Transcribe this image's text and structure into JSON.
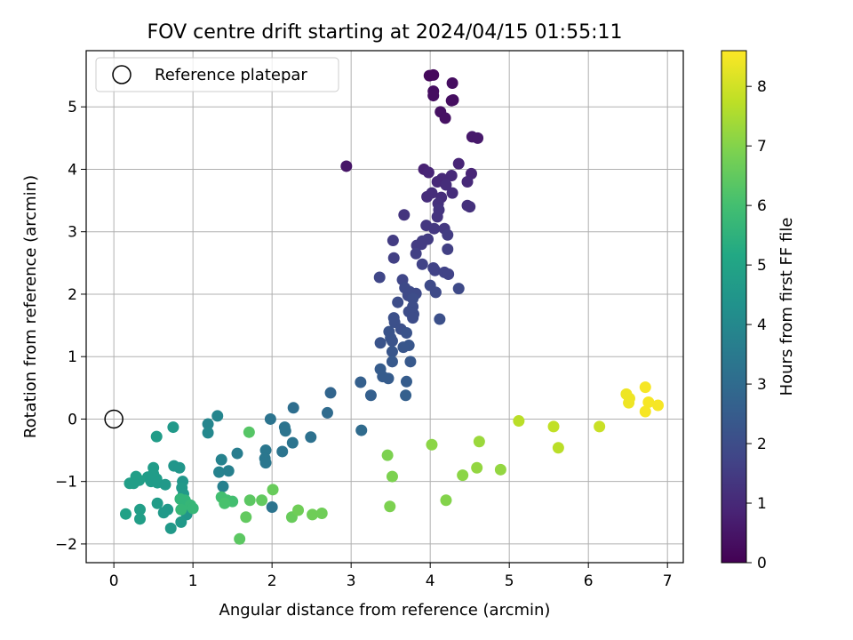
{
  "chart_data": {
    "type": "scatter",
    "title": "FOV centre drift starting at 2024/04/15 01:55:11",
    "xlabel": "Angular distance from reference (arcmin)",
    "ylabel": "Rotation from reference (arcmin)",
    "xlim": [
      -0.35,
      7.2
    ],
    "ylim": [
      -2.3,
      5.9
    ],
    "xticks": [
      0,
      1,
      2,
      3,
      4,
      5,
      6,
      7
    ],
    "yticks": [
      -2,
      -1,
      0,
      1,
      2,
      3,
      4,
      5
    ],
    "grid": true,
    "legend": {
      "placement": "top-left",
      "entries": [
        "Reference platepar"
      ]
    },
    "reference_point": {
      "x": 0,
      "y": 0
    },
    "colorbar": {
      "label": "Hours from first FF file",
      "colormap": "viridis",
      "range": [
        0,
        8.6
      ],
      "ticks": [
        0,
        1,
        2,
        3,
        4,
        5,
        6,
        7,
        8
      ]
    },
    "points": [
      {
        "x": 2.94,
        "y": 4.05,
        "c": 0.5
      },
      {
        "x": 3.99,
        "y": 5.5,
        "c": 0.2
      },
      {
        "x": 4.04,
        "y": 5.51,
        "c": 0.2
      },
      {
        "x": 4.28,
        "y": 5.38,
        "c": 0.3
      },
      {
        "x": 4.04,
        "y": 5.25,
        "c": 0.3
      },
      {
        "x": 4.04,
        "y": 5.18,
        "c": 0.3
      },
      {
        "x": 4.29,
        "y": 5.11,
        "c": 0.3
      },
      {
        "x": 4.27,
        "y": 5.1,
        "c": 0.3
      },
      {
        "x": 4.13,
        "y": 4.92,
        "c": 0.4
      },
      {
        "x": 4.19,
        "y": 4.82,
        "c": 0.4
      },
      {
        "x": 4.53,
        "y": 4.52,
        "c": 0.6
      },
      {
        "x": 4.6,
        "y": 4.5,
        "c": 0.6
      },
      {
        "x": 4.36,
        "y": 4.09,
        "c": 0.9
      },
      {
        "x": 3.92,
        "y": 4.0,
        "c": 0.8
      },
      {
        "x": 3.98,
        "y": 3.95,
        "c": 0.9
      },
      {
        "x": 4.52,
        "y": 3.93,
        "c": 0.9
      },
      {
        "x": 4.27,
        "y": 3.9,
        "c": 1.0
      },
      {
        "x": 4.15,
        "y": 3.85,
        "c": 1.0
      },
      {
        "x": 4.09,
        "y": 3.8,
        "c": 1.0
      },
      {
        "x": 4.47,
        "y": 3.8,
        "c": 1.0
      },
      {
        "x": 4.2,
        "y": 3.75,
        "c": 1.1
      },
      {
        "x": 4.02,
        "y": 3.62,
        "c": 1.1
      },
      {
        "x": 4.28,
        "y": 3.62,
        "c": 1.1
      },
      {
        "x": 3.96,
        "y": 3.56,
        "c": 1.1
      },
      {
        "x": 4.14,
        "y": 3.55,
        "c": 1.1
      },
      {
        "x": 4.1,
        "y": 3.45,
        "c": 1.2
      },
      {
        "x": 4.47,
        "y": 3.42,
        "c": 1.2
      },
      {
        "x": 4.5,
        "y": 3.4,
        "c": 1.2
      },
      {
        "x": 4.11,
        "y": 3.35,
        "c": 1.3
      },
      {
        "x": 3.67,
        "y": 3.27,
        "c": 1.3
      },
      {
        "x": 4.09,
        "y": 3.24,
        "c": 1.3
      },
      {
        "x": 3.95,
        "y": 3.1,
        "c": 1.4
      },
      {
        "x": 4.18,
        "y": 3.05,
        "c": 1.4
      },
      {
        "x": 4.05,
        "y": 3.05,
        "c": 1.4
      },
      {
        "x": 4.22,
        "y": 2.95,
        "c": 1.5
      },
      {
        "x": 3.9,
        "y": 2.85,
        "c": 1.5
      },
      {
        "x": 3.97,
        "y": 2.88,
        "c": 1.5
      },
      {
        "x": 3.53,
        "y": 2.86,
        "c": 1.5
      },
      {
        "x": 3.83,
        "y": 2.78,
        "c": 1.5
      },
      {
        "x": 3.89,
        "y": 2.8,
        "c": 1.5
      },
      {
        "x": 4.22,
        "y": 2.72,
        "c": 1.6
      },
      {
        "x": 3.82,
        "y": 2.65,
        "c": 1.6
      },
      {
        "x": 3.54,
        "y": 2.58,
        "c": 1.6
      },
      {
        "x": 3.9,
        "y": 2.48,
        "c": 1.7
      },
      {
        "x": 4.04,
        "y": 2.42,
        "c": 1.7
      },
      {
        "x": 4.06,
        "y": 2.38,
        "c": 1.7
      },
      {
        "x": 4.18,
        "y": 2.35,
        "c": 1.7
      },
      {
        "x": 4.23,
        "y": 2.32,
        "c": 1.7
      },
      {
        "x": 3.36,
        "y": 2.27,
        "c": 1.8
      },
      {
        "x": 3.65,
        "y": 2.23,
        "c": 1.8
      },
      {
        "x": 4.0,
        "y": 2.14,
        "c": 1.9
      },
      {
        "x": 4.36,
        "y": 2.09,
        "c": 1.9
      },
      {
        "x": 3.68,
        "y": 2.1,
        "c": 1.9
      },
      {
        "x": 3.74,
        "y": 2.04,
        "c": 1.9
      },
      {
        "x": 4.07,
        "y": 2.03,
        "c": 1.9
      },
      {
        "x": 3.82,
        "y": 2.01,
        "c": 1.9
      },
      {
        "x": 3.72,
        "y": 1.98,
        "c": 1.9
      },
      {
        "x": 3.78,
        "y": 1.93,
        "c": 2.0
      },
      {
        "x": 3.59,
        "y": 1.87,
        "c": 2.0
      },
      {
        "x": 3.78,
        "y": 1.8,
        "c": 2.0
      },
      {
        "x": 3.73,
        "y": 1.72,
        "c": 2.0
      },
      {
        "x": 3.79,
        "y": 1.68,
        "c": 2.0
      },
      {
        "x": 3.78,
        "y": 1.62,
        "c": 2.0
      },
      {
        "x": 3.54,
        "y": 1.62,
        "c": 2.1
      },
      {
        "x": 3.55,
        "y": 1.55,
        "c": 2.1
      },
      {
        "x": 4.12,
        "y": 1.6,
        "c": 2.1
      },
      {
        "x": 3.63,
        "y": 1.44,
        "c": 2.1
      },
      {
        "x": 3.48,
        "y": 1.4,
        "c": 2.2
      },
      {
        "x": 3.7,
        "y": 1.38,
        "c": 2.2
      },
      {
        "x": 3.5,
        "y": 1.3,
        "c": 2.2
      },
      {
        "x": 3.37,
        "y": 1.22,
        "c": 2.2
      },
      {
        "x": 3.52,
        "y": 1.25,
        "c": 2.2
      },
      {
        "x": 3.73,
        "y": 1.18,
        "c": 2.3
      },
      {
        "x": 3.66,
        "y": 1.15,
        "c": 2.3
      },
      {
        "x": 3.52,
        "y": 1.08,
        "c": 2.3
      },
      {
        "x": 3.52,
        "y": 0.92,
        "c": 2.4
      },
      {
        "x": 3.75,
        "y": 0.92,
        "c": 2.4
      },
      {
        "x": 3.37,
        "y": 0.8,
        "c": 2.5
      },
      {
        "x": 3.4,
        "y": 0.68,
        "c": 2.5
      },
      {
        "x": 3.47,
        "y": 0.65,
        "c": 2.5
      },
      {
        "x": 3.7,
        "y": 0.6,
        "c": 2.5
      },
      {
        "x": 3.12,
        "y": 0.59,
        "c": 2.6
      },
      {
        "x": 2.74,
        "y": 0.42,
        "c": 2.8
      },
      {
        "x": 3.25,
        "y": 0.38,
        "c": 2.6
      },
      {
        "x": 3.69,
        "y": 0.38,
        "c": 2.6
      },
      {
        "x": 2.27,
        "y": 0.18,
        "c": 3.1
      },
      {
        "x": 2.7,
        "y": 0.1,
        "c": 3.0
      },
      {
        "x": 3.13,
        "y": -0.18,
        "c": 3.0
      },
      {
        "x": 1.31,
        "y": 0.05,
        "c": 3.9
      },
      {
        "x": 1.98,
        "y": 0.0,
        "c": 3.3
      },
      {
        "x": 1.19,
        "y": -0.08,
        "c": 3.9
      },
      {
        "x": 2.16,
        "y": -0.13,
        "c": 3.3
      },
      {
        "x": 2.17,
        "y": -0.19,
        "c": 3.3
      },
      {
        "x": 1.19,
        "y": -0.22,
        "c": 4.0
      },
      {
        "x": 2.49,
        "y": -0.29,
        "c": 3.2
      },
      {
        "x": 2.26,
        "y": -0.38,
        "c": 3.3
      },
      {
        "x": 1.92,
        "y": -0.5,
        "c": 3.4
      },
      {
        "x": 2.13,
        "y": -0.52,
        "c": 3.3
      },
      {
        "x": 1.56,
        "y": -0.55,
        "c": 3.6
      },
      {
        "x": 1.91,
        "y": -0.63,
        "c": 3.4
      },
      {
        "x": 1.92,
        "y": -0.7,
        "c": 3.4
      },
      {
        "x": 1.36,
        "y": -0.65,
        "c": 3.8
      },
      {
        "x": 1.33,
        "y": -0.85,
        "c": 3.8
      },
      {
        "x": 1.45,
        "y": -0.83,
        "c": 3.7
      },
      {
        "x": 1.38,
        "y": -1.08,
        "c": 3.7
      },
      {
        "x": 2.0,
        "y": -1.41,
        "c": 3.3
      },
      {
        "x": 0.75,
        "y": -0.13,
        "c": 4.6
      },
      {
        "x": 0.54,
        "y": -0.28,
        "c": 4.7
      },
      {
        "x": 0.76,
        "y": -0.75,
        "c": 4.5
      },
      {
        "x": 0.83,
        "y": -0.78,
        "c": 4.5
      },
      {
        "x": 0.5,
        "y": -0.78,
        "c": 4.7
      },
      {
        "x": 0.5,
        "y": -0.88,
        "c": 4.7
      },
      {
        "x": 0.28,
        "y": -0.92,
        "c": 4.8
      },
      {
        "x": 0.43,
        "y": -0.93,
        "c": 4.7
      },
      {
        "x": 0.47,
        "y": -1.0,
        "c": 4.7
      },
      {
        "x": 0.54,
        "y": -0.96,
        "c": 4.7
      },
      {
        "x": 0.55,
        "y": -1.02,
        "c": 4.7
      },
      {
        "x": 0.32,
        "y": -0.98,
        "c": 4.8
      },
      {
        "x": 0.25,
        "y": -1.03,
        "c": 4.8
      },
      {
        "x": 0.2,
        "y": -1.03,
        "c": 4.8
      },
      {
        "x": 0.65,
        "y": -1.05,
        "c": 4.6
      },
      {
        "x": 0.87,
        "y": -1.0,
        "c": 4.5
      },
      {
        "x": 0.86,
        "y": -1.1,
        "c": 4.6
      },
      {
        "x": 0.88,
        "y": -1.2,
        "c": 4.6
      },
      {
        "x": 0.55,
        "y": -1.35,
        "c": 4.7
      },
      {
        "x": 0.9,
        "y": -1.35,
        "c": 4.5
      },
      {
        "x": 0.95,
        "y": -1.4,
        "c": 4.5
      },
      {
        "x": 0.33,
        "y": -1.45,
        "c": 4.8
      },
      {
        "x": 0.68,
        "y": -1.45,
        "c": 4.6
      },
      {
        "x": 0.92,
        "y": -1.53,
        "c": 4.5
      },
      {
        "x": 0.15,
        "y": -1.52,
        "c": 4.9
      },
      {
        "x": 0.63,
        "y": -1.5,
        "c": 4.6
      },
      {
        "x": 0.33,
        "y": -1.6,
        "c": 4.8
      },
      {
        "x": 0.85,
        "y": -1.65,
        "c": 4.6
      },
      {
        "x": 0.72,
        "y": -1.75,
        "c": 4.6
      },
      {
        "x": 0.84,
        "y": -1.28,
        "c": 5.6
      },
      {
        "x": 0.9,
        "y": -1.3,
        "c": 5.6
      },
      {
        "x": 0.97,
        "y": -1.38,
        "c": 5.7
      },
      {
        "x": 1.0,
        "y": -1.43,
        "c": 5.7
      },
      {
        "x": 0.85,
        "y": -1.45,
        "c": 5.7
      },
      {
        "x": 1.36,
        "y": -1.25,
        "c": 6.0
      },
      {
        "x": 1.43,
        "y": -1.3,
        "c": 6.0
      },
      {
        "x": 1.5,
        "y": -1.32,
        "c": 6.0
      },
      {
        "x": 1.4,
        "y": -1.35,
        "c": 6.1
      },
      {
        "x": 1.71,
        "y": -0.21,
        "c": 6.3
      },
      {
        "x": 1.72,
        "y": -1.3,
        "c": 6.4
      },
      {
        "x": 1.87,
        "y": -1.3,
        "c": 6.5
      },
      {
        "x": 2.01,
        "y": -1.13,
        "c": 6.6
      },
      {
        "x": 1.67,
        "y": -1.57,
        "c": 6.5
      },
      {
        "x": 2.25,
        "y": -1.57,
        "c": 6.6
      },
      {
        "x": 2.33,
        "y": -1.46,
        "c": 6.7
      },
      {
        "x": 2.51,
        "y": -1.53,
        "c": 6.7
      },
      {
        "x": 2.63,
        "y": -1.51,
        "c": 6.7
      },
      {
        "x": 1.59,
        "y": -1.92,
        "c": 6.4
      },
      {
        "x": 3.46,
        "y": -0.58,
        "c": 6.9
      },
      {
        "x": 3.52,
        "y": -0.92,
        "c": 6.9
      },
      {
        "x": 3.49,
        "y": -1.4,
        "c": 6.9
      },
      {
        "x": 4.02,
        "y": -0.41,
        "c": 7.1
      },
      {
        "x": 4.41,
        "y": -0.9,
        "c": 7.1
      },
      {
        "x": 4.59,
        "y": -0.78,
        "c": 7.2
      },
      {
        "x": 4.62,
        "y": -0.36,
        "c": 7.3
      },
      {
        "x": 4.89,
        "y": -0.81,
        "c": 7.2
      },
      {
        "x": 4.2,
        "y": -1.3,
        "c": 7.0
      },
      {
        "x": 5.12,
        "y": -0.03,
        "c": 7.7
      },
      {
        "x": 5.56,
        "y": -0.12,
        "c": 7.8
      },
      {
        "x": 5.62,
        "y": -0.46,
        "c": 7.7
      },
      {
        "x": 6.14,
        "y": -0.12,
        "c": 7.9
      },
      {
        "x": 6.48,
        "y": 0.4,
        "c": 8.4
      },
      {
        "x": 6.52,
        "y": 0.33,
        "c": 8.4
      },
      {
        "x": 6.51,
        "y": 0.26,
        "c": 8.4
      },
      {
        "x": 6.72,
        "y": 0.51,
        "c": 8.5
      },
      {
        "x": 6.76,
        "y": 0.27,
        "c": 8.5
      },
      {
        "x": 6.72,
        "y": 0.12,
        "c": 8.5
      },
      {
        "x": 6.88,
        "y": 0.22,
        "c": 8.5
      }
    ]
  }
}
